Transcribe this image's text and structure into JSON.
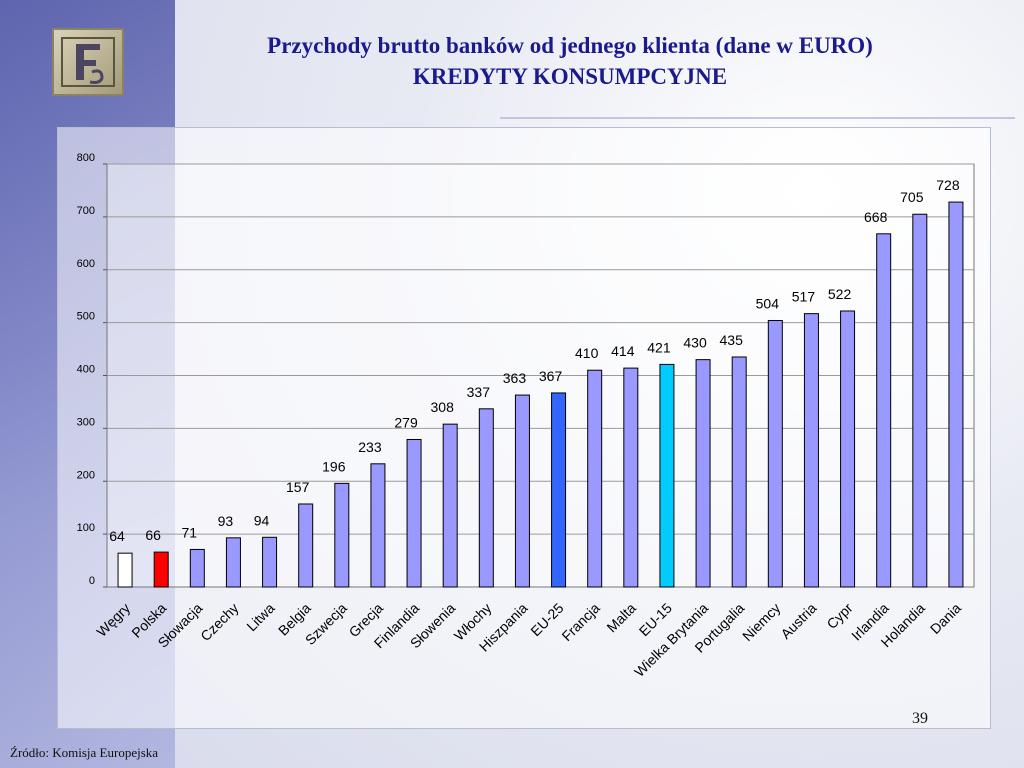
{
  "slide": {
    "title_line1": "Przychody brutto banków od jednego klienta (dane w EURO)",
    "title_line2": "KREDYTY KONSUMPCYJNE",
    "page_number": "39",
    "source": "Źródło: Komisja Europejska",
    "logo_icon": "bank-emblem-icon"
  },
  "chart_data": {
    "type": "bar",
    "title": "Przychody brutto banków od jednego klienta (dane w EURO) KREDYTY KONSUMPCYJNE",
    "xlabel": "",
    "ylabel": "",
    "ylim": [
      0,
      800
    ],
    "yticks": [
      0,
      100,
      200,
      300,
      400,
      500,
      600,
      700,
      800
    ],
    "grid": true,
    "legend": "none",
    "categories": [
      "Węgry",
      "Polska",
      "Słowacja",
      "Czechy",
      "Litwa",
      "Belgia",
      "Szwecja",
      "Grecja",
      "Finlandia",
      "Słowenia",
      "Włochy",
      "Hiszpania",
      "EU-25",
      "Francja",
      "Malta",
      "EU-15",
      "Wielka Brytania",
      "Portugalia",
      "Niemcy",
      "Austria",
      "Cypr",
      "Irlandia",
      "Holandia",
      "Dania"
    ],
    "values": [
      64,
      66,
      71,
      93,
      94,
      157,
      196,
      233,
      279,
      308,
      337,
      363,
      367,
      410,
      414,
      421,
      430,
      435,
      504,
      517,
      522,
      668,
      705,
      728
    ],
    "bar_colors": [
      "#ffffff",
      "#ff0000",
      "#9999ff",
      "#9999ff",
      "#9999ff",
      "#9999ff",
      "#9999ff",
      "#9999ff",
      "#9999ff",
      "#9999ff",
      "#9999ff",
      "#9999ff",
      "#3366ff",
      "#9999ff",
      "#9999ff",
      "#00ccff",
      "#9999ff",
      "#9999ff",
      "#9999ff",
      "#9999ff",
      "#9999ff",
      "#9999ff",
      "#9999ff",
      "#9999ff"
    ],
    "default_bar_color": "#9999ff",
    "highlight_colors": {
      "Polska": "#ff0000",
      "EU-25": "#3366ff",
      "EU-15": "#00ccff",
      "Węgry": "#ffffff"
    }
  }
}
